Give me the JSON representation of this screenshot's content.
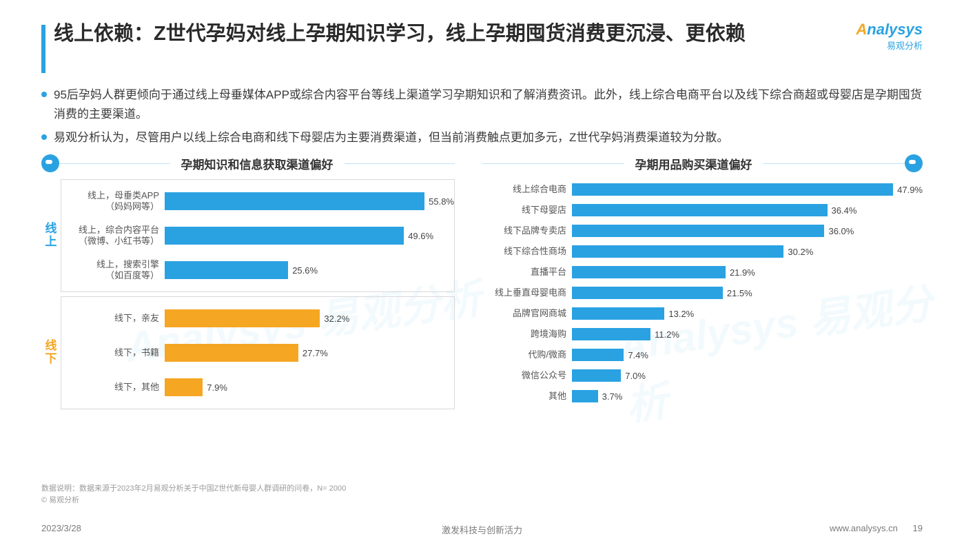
{
  "title": "线上依赖：Z世代孕妈对线上孕期知识学习，线上孕期囤货消费更沉浸、更依赖",
  "logo": {
    "brand_a": "A",
    "brand_rest": "nalysys",
    "sub": "易观分析"
  },
  "bullets": [
    "95后孕妈人群更倾向于通过线上母垂媒体APP或综合内容平台等线上渠道学习孕期知识和了解消费资讯。此外，线上综合电商平台以及线下综合商超或母婴店是孕期囤货消费的主要渠道。",
    "易观分析认为，尽管用户以线上综合电商和线下母婴店为主要消费渠道，但当前消费触点更加多元，Z世代孕妈消费渠道较为分散。"
  ],
  "chart_left": {
    "title": "孕期知识和信息获取渠道偏好",
    "type": "bar-horizontal",
    "xmax": 60,
    "label_fontsize": 13,
    "value_fontsize": 13,
    "groups": [
      {
        "name": "线上",
        "color": "#2aa2e2",
        "label_color": "#2aa2e2",
        "rows": [
          {
            "label": "线上，母垂类APP\n（妈妈网等）",
            "value": 55.8,
            "display": "55.8%"
          },
          {
            "label": "线上，综合内容平台\n（微博、小红书等）",
            "value": 49.6,
            "display": "49.6%"
          },
          {
            "label": "线上，搜索引擎\n（如百度等）",
            "value": 25.6,
            "display": "25.6%"
          }
        ]
      },
      {
        "name": "线下",
        "color": "#f5a623",
        "label_color": "#f5a623",
        "rows": [
          {
            "label": "线下，亲友",
            "value": 32.2,
            "display": "32.2%"
          },
          {
            "label": "线下，书籍",
            "value": 27.7,
            "display": "27.7%"
          },
          {
            "label": "线下，其他",
            "value": 7.9,
            "display": "7.9%"
          }
        ]
      }
    ]
  },
  "chart_right": {
    "title": "孕期用品购买渠道偏好",
    "type": "bar-horizontal",
    "xmax": 50,
    "bar_color": "#2aa2e2",
    "label_fontsize": 13,
    "value_fontsize": 13,
    "rows": [
      {
        "label": "线上综合电商",
        "value": 47.9,
        "display": "47.9%"
      },
      {
        "label": "线下母婴店",
        "value": 36.4,
        "display": "36.4%"
      },
      {
        "label": "线下品牌专卖店",
        "value": 36.0,
        "display": "36.0%"
      },
      {
        "label": "线下综合性商场",
        "value": 30.2,
        "display": "30.2%"
      },
      {
        "label": "直播平台",
        "value": 21.9,
        "display": "21.9%"
      },
      {
        "label": "线上垂直母婴电商",
        "value": 21.5,
        "display": "21.5%"
      },
      {
        "label": "品牌官网商城",
        "value": 13.2,
        "display": "13.2%"
      },
      {
        "label": "跨境海购",
        "value": 11.2,
        "display": "11.2%"
      },
      {
        "label": "代购/微商",
        "value": 7.4,
        "display": "7.4%"
      },
      {
        "label": "微信公众号",
        "value": 7.0,
        "display": "7.0%"
      },
      {
        "label": "其他",
        "value": 3.7,
        "display": "3.7%"
      }
    ]
  },
  "notes": {
    "line1": "数据说明：数据来源于2023年2月易观分析关于中国Z世代新母婴人群调研的问卷，N= 2000",
    "line2": "© 易观分析"
  },
  "footer": {
    "date": "2023/3/28",
    "slogan": "激发科技与创新活力",
    "url": "www.analysys.cn",
    "page": "19"
  },
  "watermark": "Analysys 易观分析",
  "colors": {
    "accent": "#2aa2e2",
    "orange": "#f5a623",
    "border": "#d9d9d9",
    "text": "#333333",
    "muted": "#9a9a9a",
    "bg": "#ffffff"
  }
}
